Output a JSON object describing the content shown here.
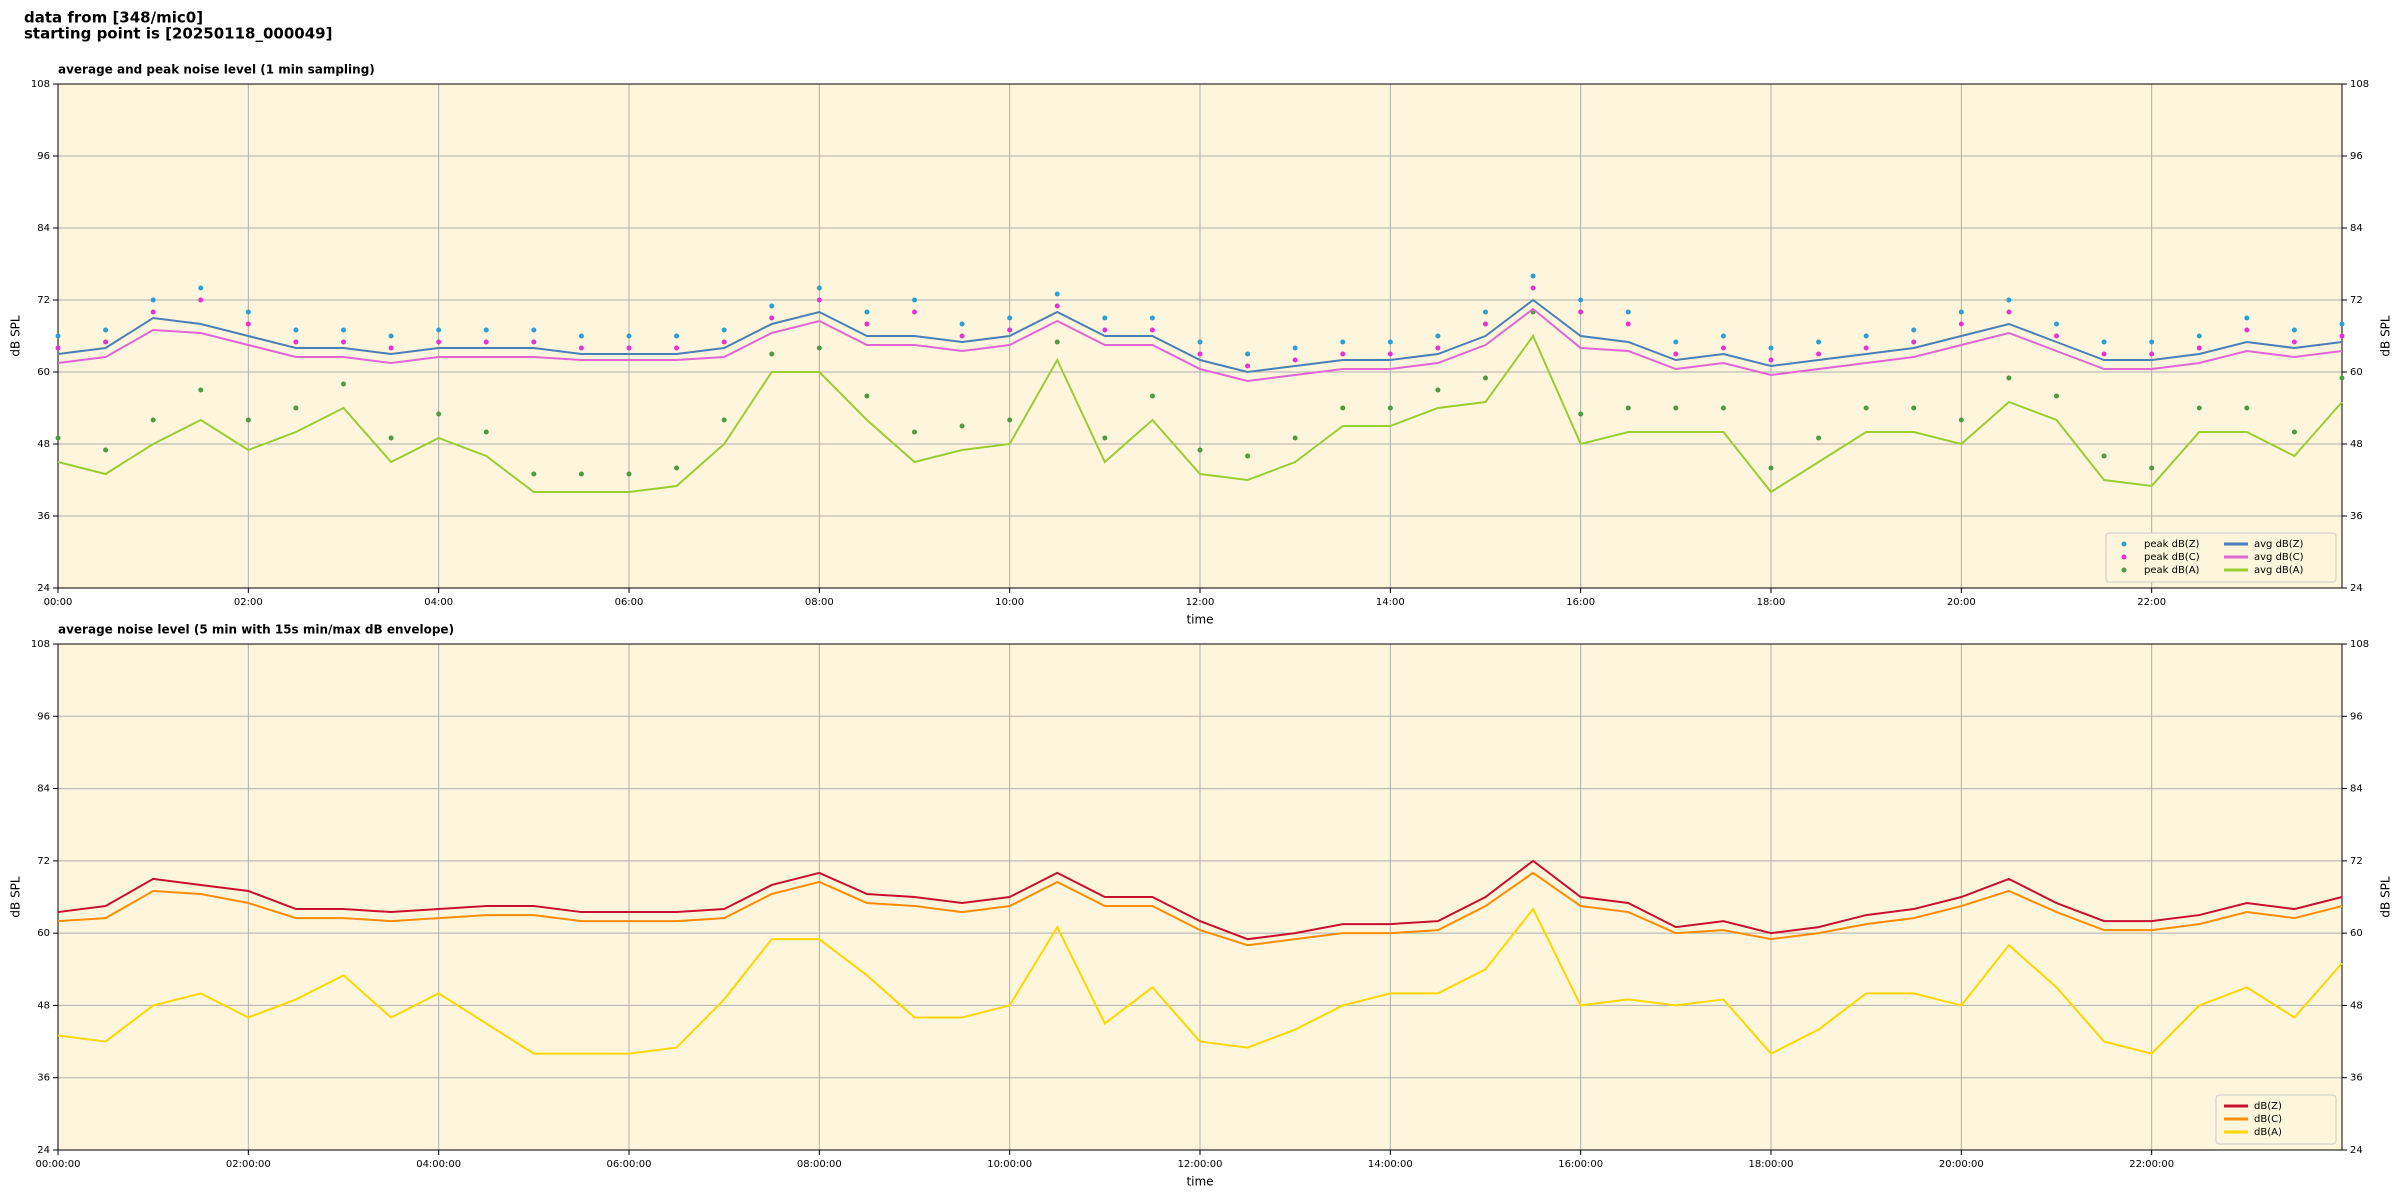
{
  "header": {
    "line1": "data from [348/mic0]",
    "line2": "starting point is [20250118_000049]"
  },
  "chart_data": [
    {
      "type": "line",
      "title": "average and peak noise level (1 min sampling)",
      "x_label": "time",
      "y_label": "dB SPL",
      "x": [
        0,
        0.5,
        1,
        1.5,
        2,
        2.5,
        3,
        3.5,
        4,
        4.5,
        5,
        5.5,
        6,
        6.5,
        7,
        7.5,
        8,
        8.5,
        9,
        9.5,
        10,
        10.5,
        11,
        11.5,
        12,
        12.5,
        13,
        13.5,
        14,
        14.5,
        15,
        15.5,
        16,
        16.5,
        17,
        17.5,
        18,
        18.5,
        19,
        19.5,
        20,
        20.5,
        21,
        21.5,
        22,
        22.5,
        23,
        23.5,
        24
      ],
      "xlim": [
        0,
        24
      ],
      "xticks": [
        {
          "value": 0,
          "label": "00:00"
        },
        {
          "value": 2,
          "label": "02:00"
        },
        {
          "value": 4,
          "label": "04:00"
        },
        {
          "value": 6,
          "label": "06:00"
        },
        {
          "value": 8,
          "label": "08:00"
        },
        {
          "value": 10,
          "label": "10:00"
        },
        {
          "value": 12,
          "label": "12:00"
        },
        {
          "value": 14,
          "label": "14:00"
        },
        {
          "value": 16,
          "label": "16:00"
        },
        {
          "value": 18,
          "label": "18:00"
        },
        {
          "value": 20,
          "label": "20:00"
        },
        {
          "value": 22,
          "label": "22:00"
        }
      ],
      "ylim": [
        24,
        108
      ],
      "yticks": [
        24,
        36,
        48,
        60,
        72,
        84,
        96,
        108
      ],
      "grid": true,
      "legend": "lower right",
      "legend_columns": 2,
      "series": [
        {
          "name": "peak dB(Z)",
          "style": "dots",
          "color": "#2a9fd8",
          "values": [
            66,
            67,
            72,
            74,
            70,
            67,
            67,
            66,
            67,
            67,
            67,
            66,
            66,
            66,
            67,
            71,
            74,
            70,
            72,
            68,
            69,
            73,
            69,
            69,
            65,
            63,
            64,
            65,
            65,
            66,
            70,
            76,
            72,
            70,
            65,
            66,
            64,
            65,
            66,
            67,
            70,
            72,
            68,
            65,
            65,
            66,
            69,
            67,
            68
          ]
        },
        {
          "name": "peak dB(C)",
          "style": "dots",
          "color": "#e830d8",
          "values": [
            64,
            65,
            70,
            72,
            68,
            65,
            65,
            64,
            65,
            65,
            65,
            64,
            64,
            64,
            65,
            69,
            72,
            68,
            70,
            66,
            67,
            71,
            67,
            67,
            63,
            61,
            62,
            63,
            63,
            64,
            68,
            74,
            70,
            68,
            63,
            64,
            62,
            63,
            64,
            65,
            68,
            70,
            66,
            63,
            63,
            64,
            67,
            65,
            66
          ]
        },
        {
          "name": "peak dB(A)",
          "style": "dots",
          "color": "#4f9a45",
          "values": [
            49,
            47,
            52,
            57,
            52,
            54,
            58,
            49,
            53,
            50,
            43,
            43,
            43,
            44,
            52,
            63,
            64,
            56,
            50,
            51,
            52,
            65,
            49,
            56,
            47,
            46,
            49,
            54,
            54,
            57,
            59,
            70,
            53,
            54,
            54,
            54,
            44,
            49,
            54,
            54,
            52,
            59,
            56,
            46,
            44,
            54,
            54,
            50,
            59
          ]
        },
        {
          "name": "avg dB(Z)",
          "style": "line",
          "color": "#4a7fb8",
          "values": [
            63,
            64,
            69,
            68,
            66,
            64,
            64,
            63,
            64,
            64,
            64,
            63,
            63,
            63,
            64,
            68,
            70,
            66,
            66,
            65,
            66,
            70,
            66,
            66,
            62,
            60,
            61,
            62,
            62,
            63,
            66,
            72,
            66,
            65,
            62,
            63,
            61,
            62,
            63,
            64,
            66,
            68,
            65,
            62,
            62,
            63,
            65,
            64,
            65
          ]
        },
        {
          "name": "avg dB(C)",
          "style": "line",
          "color": "#e066d6",
          "values": [
            61.5,
            62.5,
            67,
            66.5,
            64.5,
            62.5,
            62.5,
            61.5,
            62.5,
            62.5,
            62.5,
            62,
            62,
            62,
            62.5,
            66.5,
            68.5,
            64.5,
            64.5,
            63.5,
            64.5,
            68.5,
            64.5,
            64.5,
            60.5,
            58.5,
            59.5,
            60.5,
            60.5,
            61.5,
            64.5,
            70.5,
            64,
            63.5,
            60.5,
            61.5,
            59.5,
            60.5,
            61.5,
            62.5,
            64.5,
            66.5,
            63.5,
            60.5,
            60.5,
            61.5,
            63.5,
            62.5,
            63.5
          ]
        },
        {
          "name": "avg dB(A)",
          "style": "line",
          "color": "#9acd32",
          "values": [
            45,
            43,
            48,
            52,
            47,
            50,
            54,
            45,
            49,
            46,
            40,
            40,
            40,
            41,
            48,
            60,
            60,
            52,
            45,
            47,
            48,
            62,
            45,
            52,
            43,
            42,
            45,
            51,
            51,
            54,
            55,
            66,
            48,
            50,
            50,
            50,
            40,
            45,
            50,
            50,
            48,
            55,
            52,
            42,
            41,
            50,
            50,
            46,
            55
          ]
        }
      ]
    },
    {
      "type": "line",
      "title": "average noise level (5 min with 15s min/max dB envelope)",
      "x_label": "time",
      "y_label": "dB SPL",
      "x": [
        0,
        0.5,
        1,
        1.5,
        2,
        2.5,
        3,
        3.5,
        4,
        4.5,
        5,
        5.5,
        6,
        6.5,
        7,
        7.5,
        8,
        8.5,
        9,
        9.5,
        10,
        10.5,
        11,
        11.5,
        12,
        12.5,
        13,
        13.5,
        14,
        14.5,
        15,
        15.5,
        16,
        16.5,
        17,
        17.5,
        18,
        18.5,
        19,
        19.5,
        20,
        20.5,
        21,
        21.5,
        22,
        22.5,
        23,
        23.5,
        24
      ],
      "xlim": [
        0,
        24
      ],
      "xticks": [
        {
          "value": 0,
          "label": "00:00:00"
        },
        {
          "value": 2,
          "label": "02:00:00"
        },
        {
          "value": 4,
          "label": "04:00:00"
        },
        {
          "value": 6,
          "label": "06:00:00"
        },
        {
          "value": 8,
          "label": "08:00:00"
        },
        {
          "value": 10,
          "label": "10:00:00"
        },
        {
          "value": 12,
          "label": "12:00:00"
        },
        {
          "value": 14,
          "label": "14:00:00"
        },
        {
          "value": 16,
          "label": "16:00:00"
        },
        {
          "value": 18,
          "label": "18:00:00"
        },
        {
          "value": 20,
          "label": "20:00:00"
        },
        {
          "value": 22,
          "label": "22:00:00"
        }
      ],
      "ylim": [
        24,
        108
      ],
      "yticks": [
        24,
        36,
        48,
        60,
        72,
        84,
        96,
        108
      ],
      "grid": true,
      "legend": "lower right",
      "legend_columns": 1,
      "series": [
        {
          "name": "dB(Z)",
          "style": "line",
          "color": "#c8102e",
          "values": [
            63.5,
            64.5,
            69,
            68,
            67,
            64,
            64,
            63.5,
            64,
            64.5,
            64.5,
            63.5,
            63.5,
            63.5,
            64,
            68,
            70,
            66.5,
            66,
            65,
            66,
            70,
            66,
            66,
            62,
            59,
            60,
            61.5,
            61.5,
            62,
            66,
            72,
            66,
            65,
            61,
            62,
            60,
            61,
            63,
            64,
            66,
            69,
            65,
            62,
            62,
            63,
            65,
            64,
            66
          ]
        },
        {
          "name": "dB(C)",
          "style": "line",
          "color": "#ff8c00",
          "values": [
            62,
            62.5,
            67,
            66.5,
            65,
            62.5,
            62.5,
            62,
            62.5,
            63,
            63,
            62,
            62,
            62,
            62.5,
            66.5,
            68.5,
            65,
            64.5,
            63.5,
            64.5,
            68.5,
            64.5,
            64.5,
            60.5,
            58,
            59,
            60,
            60,
            60.5,
            64.5,
            70,
            64.5,
            63.5,
            60,
            60.5,
            59,
            60,
            61.5,
            62.5,
            64.5,
            67,
            63.5,
            60.5,
            60.5,
            61.5,
            63.5,
            62.5,
            64.5
          ]
        },
        {
          "name": "dB(A)",
          "style": "line",
          "color": "#ffd700",
          "values": [
            43,
            42,
            48,
            50,
            46,
            49,
            53,
            46,
            50,
            45,
            40,
            40,
            40,
            41,
            49,
            59,
            59,
            53,
            46,
            46,
            48,
            61,
            45,
            51,
            42,
            41,
            44,
            48,
            50,
            50,
            54,
            64,
            48,
            49,
            48,
            49,
            40,
            44,
            50,
            50,
            48,
            58,
            51,
            42,
            40,
            48,
            51,
            46,
            55
          ]
        }
      ]
    }
  ]
}
